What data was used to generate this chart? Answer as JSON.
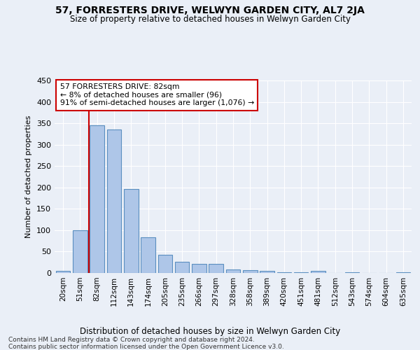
{
  "title": "57, FORRESTERS DRIVE, WELWYN GARDEN CITY, AL7 2JA",
  "subtitle": "Size of property relative to detached houses in Welwyn Garden City",
  "xlabel": "Distribution of detached houses by size in Welwyn Garden City",
  "ylabel": "Number of detached properties",
  "footer1": "Contains HM Land Registry data © Crown copyright and database right 2024.",
  "footer2": "Contains public sector information licensed under the Open Government Licence v3.0.",
  "bar_labels": [
    "20sqm",
    "51sqm",
    "82sqm",
    "112sqm",
    "143sqm",
    "174sqm",
    "205sqm",
    "235sqm",
    "266sqm",
    "297sqm",
    "328sqm",
    "358sqm",
    "389sqm",
    "420sqm",
    "451sqm",
    "481sqm",
    "512sqm",
    "543sqm",
    "574sqm",
    "604sqm",
    "635sqm"
  ],
  "bar_values": [
    5,
    100,
    345,
    336,
    197,
    84,
    43,
    26,
    22,
    22,
    9,
    7,
    5,
    2,
    2,
    5,
    0,
    2,
    0,
    0,
    2
  ],
  "bar_color": "#aec6e8",
  "bar_edge_color": "#5a8fc0",
  "highlight_index": 2,
  "highlight_color": "#cc0000",
  "annotation_title": "57 FORRESTERS DRIVE: 82sqm",
  "annotation_line2": "← 8% of detached houses are smaller (96)",
  "annotation_line3": "91% of semi-detached houses are larger (1,076) →",
  "annotation_box_color": "#ffffff",
  "annotation_box_edge": "#cc0000",
  "ylim": [
    0,
    450
  ],
  "yticks": [
    0,
    50,
    100,
    150,
    200,
    250,
    300,
    350,
    400,
    450
  ],
  "bg_color": "#eaeff7",
  "plot_bg_color": "#eaeff7"
}
